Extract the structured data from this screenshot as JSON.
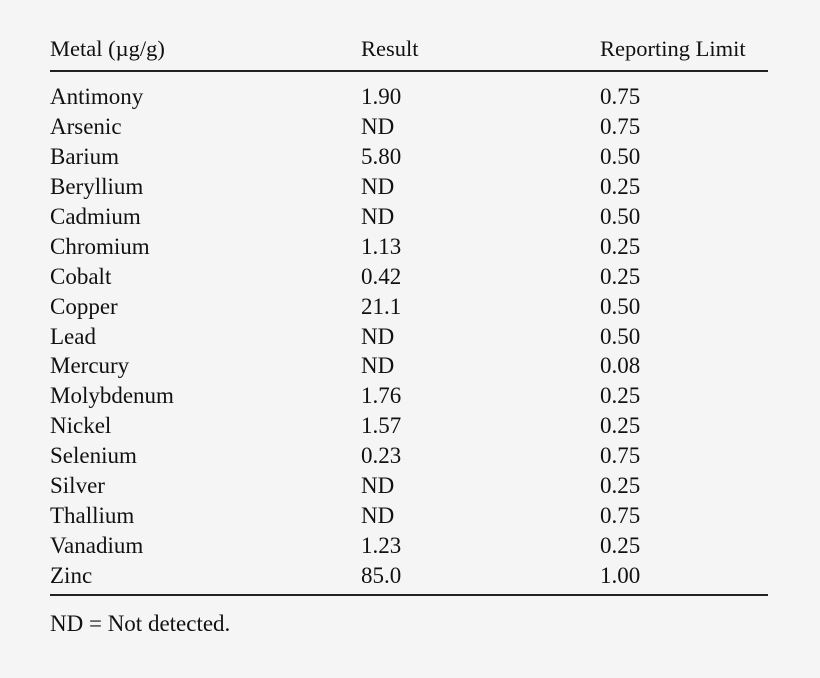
{
  "table": {
    "headers": [
      "Metal (µg/g)",
      "Result",
      "Reporting Limit"
    ],
    "rows": [
      [
        "Antimony",
        "1.90",
        "0.75"
      ],
      [
        "Arsenic",
        "ND",
        "0.75"
      ],
      [
        "Barium",
        "5.80",
        "0.50"
      ],
      [
        "Beryllium",
        "ND",
        "0.25"
      ],
      [
        "Cadmium",
        "ND",
        "0.50"
      ],
      [
        "Chromium",
        "1.13",
        "0.25"
      ],
      [
        "Cobalt",
        "0.42",
        "0.25"
      ],
      [
        "Copper",
        "21.1",
        "0.50"
      ],
      [
        "Lead",
        "ND",
        "0.50"
      ],
      [
        "Mercury",
        "ND",
        "0.08"
      ],
      [
        "Molybdenum",
        "1.76",
        "0.25"
      ],
      [
        "Nickel",
        "1.57",
        "0.25"
      ],
      [
        "Selenium",
        "0.23",
        "0.75"
      ],
      [
        "Silver",
        "ND",
        "0.25"
      ],
      [
        "Thallium",
        "ND",
        "0.75"
      ],
      [
        "Vanadium",
        "1.23",
        "0.25"
      ],
      [
        "Zinc",
        "85.0",
        "1.00"
      ]
    ]
  },
  "footnote": "ND = Not detected."
}
